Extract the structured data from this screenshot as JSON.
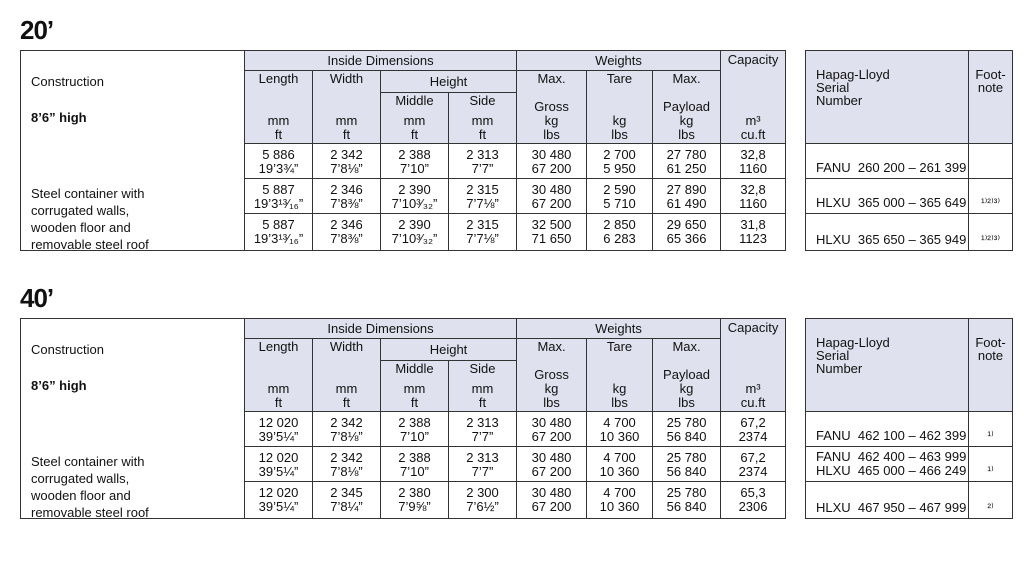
{
  "table_header": {
    "construction_label": "Construction",
    "height_class": "8’6” high",
    "construction_text": [
      "Steel container with",
      "corrugated walls,",
      "wooden floor and",
      "removable steel roof"
    ],
    "inside_group": "Inside Dimensions",
    "weights_group": "Weights",
    "capacity_group": "Capacity",
    "height_label": "Height",
    "columns": [
      {
        "label": [
          "Length"
        ],
        "units": [
          "mm",
          "ft"
        ]
      },
      {
        "label": [
          "Width"
        ],
        "units": [
          "mm",
          "ft"
        ]
      },
      {
        "label": [
          "Middle"
        ],
        "units": [
          "mm",
          "ft"
        ]
      },
      {
        "label": [
          "Side"
        ],
        "units": [
          "mm",
          "ft"
        ]
      },
      {
        "label": [
          "Max.",
          "Gross"
        ],
        "units": [
          "kg",
          "lbs"
        ]
      },
      {
        "label": [
          "Tare"
        ],
        "units": [
          "kg",
          "lbs"
        ]
      },
      {
        "label": [
          "Max.",
          "Payload"
        ],
        "units": [
          "kg",
          "lbs"
        ]
      },
      {
        "units": [
          "m³",
          "cu.ft"
        ]
      }
    ],
    "serial_header": [
      "Hapag-Lloyd",
      "Serial",
      "Number"
    ],
    "footnote_header": [
      "Foot-",
      "note"
    ]
  },
  "sections": [
    {
      "title": "20’",
      "rows": [
        [
          [
            "5 886",
            "19’3¾”"
          ],
          [
            "2 342",
            "7’8⅛”"
          ],
          [
            "2 388",
            "7’10”"
          ],
          [
            "2 313",
            "7’7”"
          ],
          [
            "30 480",
            "67 200"
          ],
          [
            "2 700",
            "5 950"
          ],
          [
            "27 780",
            "61 250"
          ],
          [
            "32,8",
            "1160"
          ]
        ],
        [
          [
            "5 887",
            "19’3¹³⁄₁₆”"
          ],
          [
            "2 346",
            "7’8⅜”"
          ],
          [
            "2 390",
            "7’10³⁄₃₂”"
          ],
          [
            "2 315",
            "7’7⅛”"
          ],
          [
            "30 480",
            "67 200"
          ],
          [
            "2 590",
            "5 710"
          ],
          [
            "27 890",
            "61 490"
          ],
          [
            "32,8",
            "1160"
          ]
        ],
        [
          [
            "5 887",
            "19’3¹³⁄₁₆”"
          ],
          [
            "2 346",
            "7’8⅜”"
          ],
          [
            "2 390",
            "7’10³⁄₃₂”"
          ],
          [
            "2 315",
            "7’7⅛”"
          ],
          [
            "32 500",
            "71 650"
          ],
          [
            "2 850",
            "6 283"
          ],
          [
            "29 650",
            "65 366"
          ],
          [
            "31,8",
            "1123"
          ]
        ]
      ],
      "serials": [
        {
          "serial": [
            "FANU  260 200 – 261 399"
          ]
        },
        {
          "serial": [
            "HLXU  365 000 – 365 649"
          ],
          "footnote": "¹⁾²⁾³⁾"
        },
        {
          "serial": [
            "HLXU  365 650 – 365 949"
          ],
          "footnote": "¹⁾²⁾³⁾"
        }
      ]
    },
    {
      "title": "40’",
      "rows": [
        [
          [
            "12 020",
            "39’5¼”"
          ],
          [
            "2 342",
            "7’8⅛”"
          ],
          [
            "2 388",
            "7’10”"
          ],
          [
            "2 313",
            "7’7”"
          ],
          [
            "30 480",
            "67 200"
          ],
          [
            "4 700",
            "10 360"
          ],
          [
            "25 780",
            "56 840"
          ],
          [
            "67,2",
            "2374"
          ]
        ],
        [
          [
            "12 020",
            "39’5¼”"
          ],
          [
            "2 342",
            "7’8⅛”"
          ],
          [
            "2 388",
            "7’10”"
          ],
          [
            "2 313",
            "7’7”"
          ],
          [
            "30 480",
            "67 200"
          ],
          [
            "4 700",
            "10 360"
          ],
          [
            "25 780",
            "56 840"
          ],
          [
            "67,2",
            "2374"
          ]
        ],
        [
          [
            "12 020",
            "39’5¼”"
          ],
          [
            "2 345",
            "7’8¼”"
          ],
          [
            "2 380",
            "7’9⅝”"
          ],
          [
            "2 300",
            "7’6½”"
          ],
          [
            "30 480",
            "67 200"
          ],
          [
            "4 700",
            "10 360"
          ],
          [
            "25 780",
            "56 840"
          ],
          [
            "65,3",
            "2306"
          ]
        ]
      ],
      "serials": [
        {
          "serial": [
            "FANU  462 100 – 462 399"
          ],
          "footnote": "¹⁾"
        },
        {
          "serial": [
            "FANU  462 400 – 463 999",
            "HLXU  465 000 – 466 249"
          ],
          "footnote": "¹⁾"
        },
        {
          "serial": [
            "HLXU  467 950 – 467 999"
          ],
          "footnote": "²⁾"
        }
      ]
    }
  ]
}
